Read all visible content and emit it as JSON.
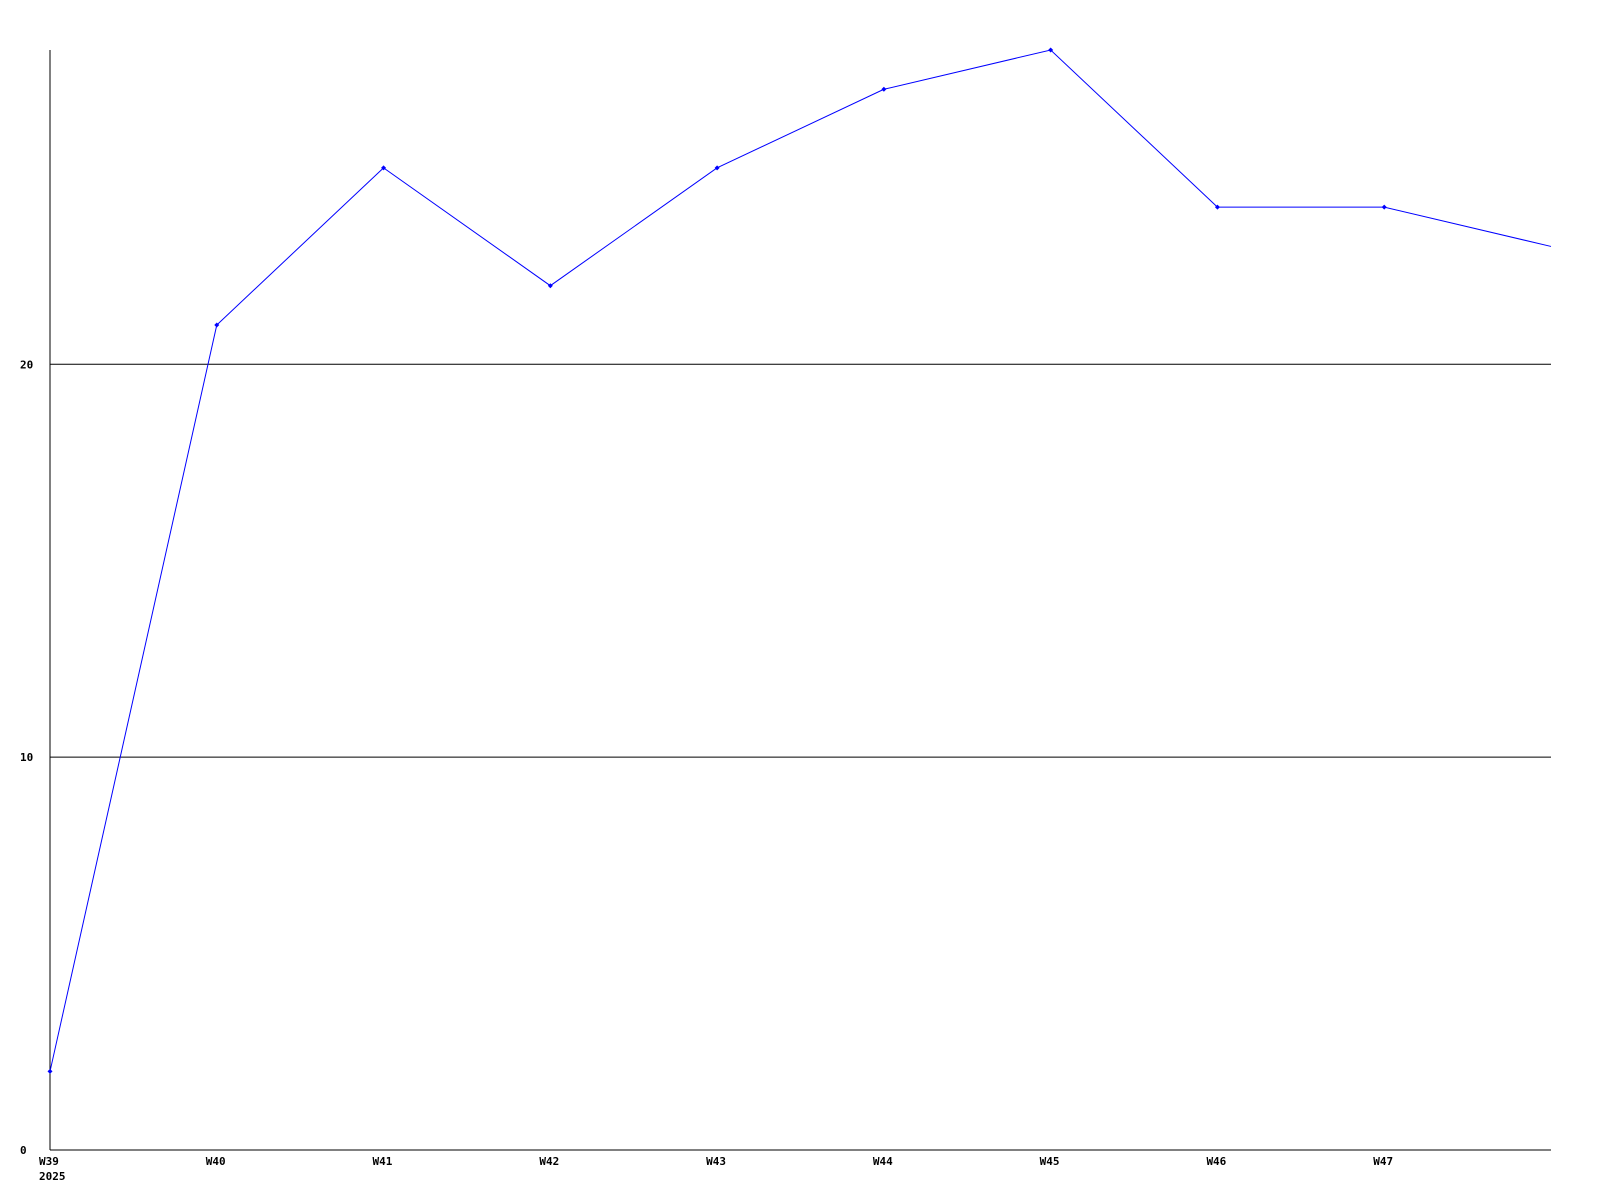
{
  "chart_data": {
    "type": "line",
    "title": "",
    "xlabel": "",
    "ylabel": "",
    "categories": [
      "W39",
      "W40",
      "W41",
      "W42",
      "W43",
      "W44",
      "W45",
      "W46",
      "W47",
      ""
    ],
    "x_year_label": "2025",
    "series": [
      {
        "values": [
          2,
          21,
          25,
          22,
          25,
          27,
          28,
          24,
          24,
          23
        ],
        "color": "#0000ff"
      }
    ],
    "ylim": [
      0,
      28
    ],
    "yticks": [
      0,
      10,
      20
    ],
    "ytick_labels": [
      "0",
      "10",
      "20"
    ],
    "grid": "horizontal",
    "legend": "none",
    "axis_color": "#000000",
    "background": "#ffffff"
  }
}
